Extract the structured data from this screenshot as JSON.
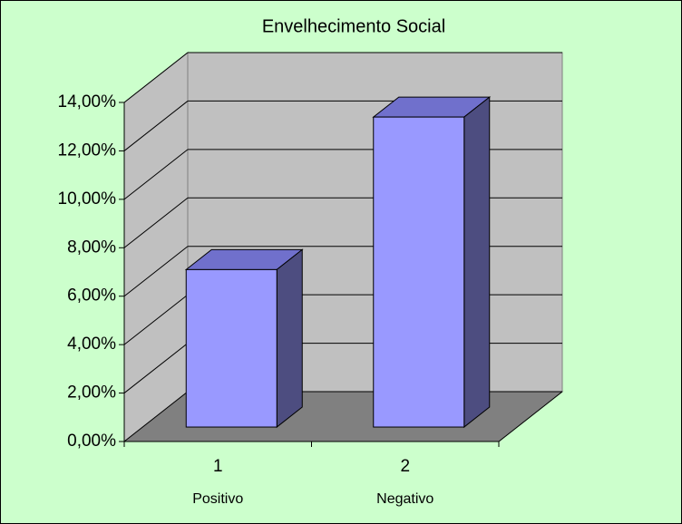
{
  "chart_data": {
    "type": "bar3d",
    "title": "Envelhecimento Social",
    "categories": [
      "1",
      "2"
    ],
    "category_names": [
      "Positivo",
      "Negativo"
    ],
    "values": [
      6.5,
      12.8
    ],
    "color": "#9999ff",
    "ylim": [
      0,
      14
    ],
    "yticks": [
      {
        "value": 0,
        "label": "0,00%"
      },
      {
        "value": 2,
        "label": "2,00%"
      },
      {
        "value": 4,
        "label": "4,00%"
      },
      {
        "value": 6,
        "label": "6,00%"
      },
      {
        "value": 8,
        "label": "8,00%"
      },
      {
        "value": 10,
        "label": "10,00%"
      },
      {
        "value": 12,
        "label": "12,00%"
      },
      {
        "value": 14,
        "label": "14,00%"
      }
    ],
    "grid": true,
    "background": "#ccffcc"
  }
}
